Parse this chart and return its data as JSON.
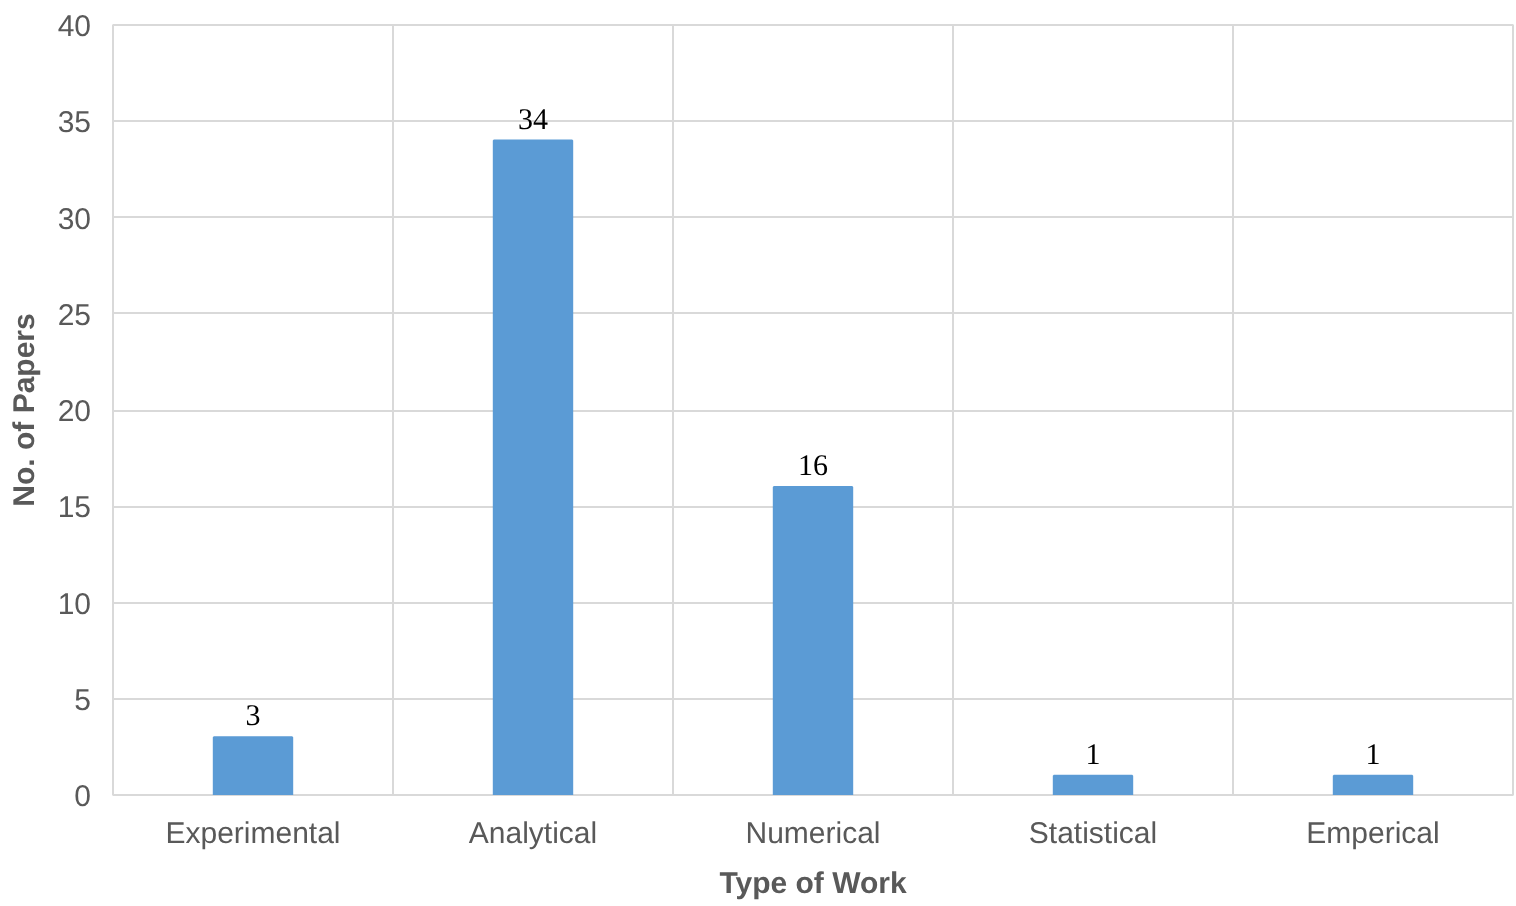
{
  "chart_data": {
    "type": "bar",
    "xlabel": "Type of Work",
    "ylabel": "No. of Papers",
    "categories": [
      "Experimental",
      "Analytical",
      "Numerical",
      "Statistical",
      "Emperical"
    ],
    "values": [
      3,
      34,
      16,
      1,
      1
    ],
    "color": "#5b9bd5",
    "data_labels": true,
    "ylim": [
      0,
      40
    ],
    "yticks": [
      0,
      5,
      10,
      15,
      20,
      25,
      30,
      35,
      40
    ],
    "grid": true
  }
}
